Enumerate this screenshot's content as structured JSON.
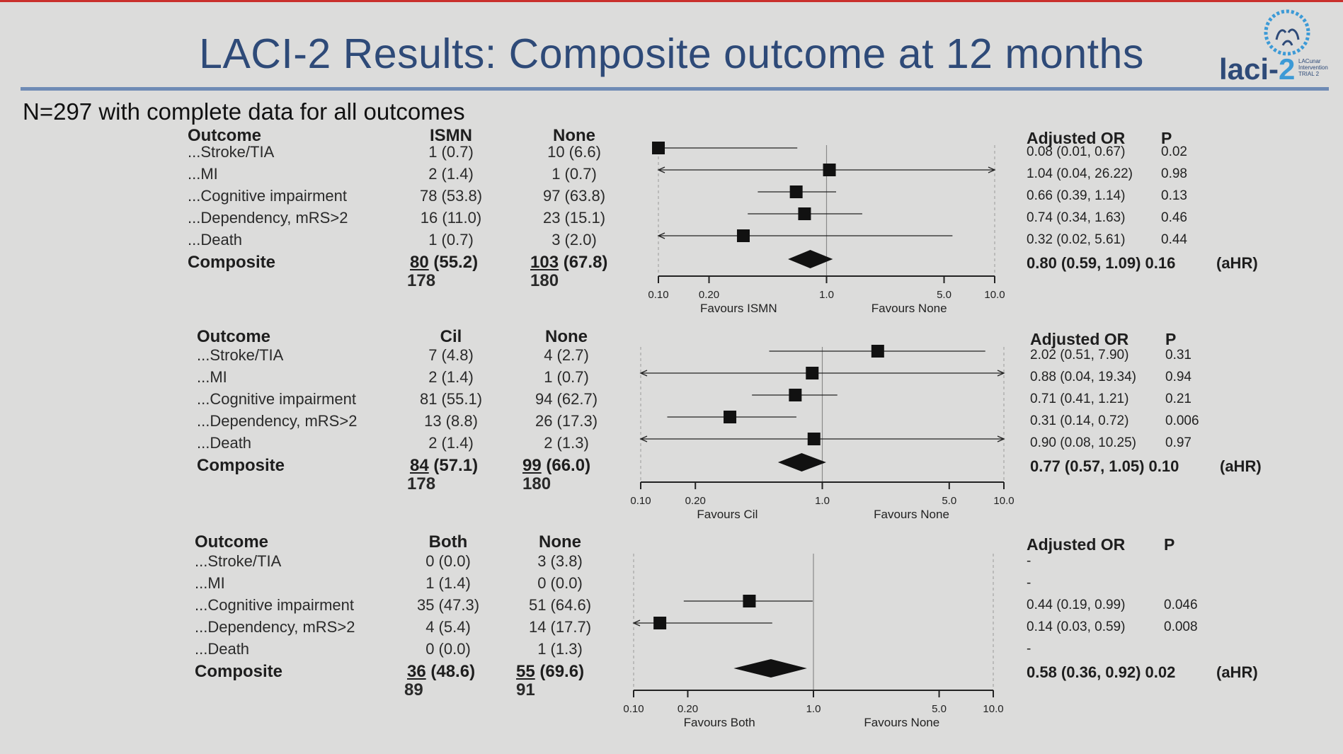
{
  "title": "LACI-2 Results: Composite outcome at 12 months",
  "subtitle": "N=297 with complete data for all outcomes",
  "logo": {
    "word": "laci-",
    "two": "2",
    "mini": "LACunar Intervention TRIAL 2"
  },
  "chart_data": [
    {
      "type": "forest",
      "outcome_header": "Outcome",
      "group_header": "ISMN",
      "control_header": "None",
      "or_header": "Adjusted  OR",
      "p_header": "P",
      "rows": [
        {
          "label": "...Stroke/TIA",
          "group": "1 (0.7)",
          "control": "10 (6.6)",
          "or_text": "0.08 (0.01, 0.67)",
          "p": "0.02",
          "est": 0.08,
          "lo": 0.01,
          "hi": 0.67
        },
        {
          "label": "...MI",
          "group": "2 (1.4)",
          "control": "1 (0.7)",
          "or_text": "1.04 (0.04, 26.22)",
          "p": "0.98",
          "est": 1.04,
          "lo": 0.04,
          "hi": 26.22
        },
        {
          "label": "...Cognitive impairment",
          "group": "78 (53.8)",
          "control": "97 (63.8)",
          "or_text": "0.66 (0.39, 1.14)",
          "p": "0.13",
          "est": 0.66,
          "lo": 0.39,
          "hi": 1.14
        },
        {
          "label": "...Dependency, mRS>2",
          "group": "16 (11.0)",
          "control": "23 (15.1)",
          "or_text": "0.74 (0.34, 1.63)",
          "p": "0.46",
          "est": 0.74,
          "lo": 0.34,
          "hi": 1.63
        },
        {
          "label": "...Death",
          "group": "1 (0.7)",
          "control": "3 (2.0)",
          "or_text": "0.32 (0.02, 5.61)",
          "p": "0.44",
          "est": 0.32,
          "lo": 0.02,
          "hi": 5.61
        }
      ],
      "composite": {
        "label": "Composite",
        "group_n": "80",
        "group_pct": " (55.2)",
        "control_n": "103",
        "control_pct": " (67.8)",
        "or_text": "0.80 (0.59, 1.09) 0.16",
        "tag": "(aHR)",
        "est": 0.8,
        "lo": 0.59,
        "hi": 1.09
      },
      "totals": {
        "group": "178",
        "control": "180"
      },
      "ticks": [
        "0.10",
        "0.20",
        "1.0",
        "5.0",
        "10.0"
      ],
      "left_label": "Favours ISMN",
      "right_label": "Favours None"
    },
    {
      "type": "forest",
      "outcome_header": "Outcome",
      "group_header": "Cil",
      "control_header": "None",
      "or_header": "Adjusted  OR",
      "p_header": "P",
      "rows": [
        {
          "label": "...Stroke/TIA",
          "group": "7 (4.8)",
          "control": "4 (2.7)",
          "or_text": "2.02 (0.51, 7.90)",
          "p": "0.31",
          "est": 2.02,
          "lo": 0.51,
          "hi": 7.9
        },
        {
          "label": "...MI",
          "group": "2 (1.4)",
          "control": "1 (0.7)",
          "or_text": "0.88 (0.04, 19.34)",
          "p": "0.94",
          "est": 0.88,
          "lo": 0.04,
          "hi": 19.34
        },
        {
          "label": "...Cognitive impairment",
          "group": "81 (55.1)",
          "control": "94 (62.7)",
          "or_text": "0.71 (0.41, 1.21)",
          "p": "0.21",
          "est": 0.71,
          "lo": 0.41,
          "hi": 1.21
        },
        {
          "label": "...Dependency, mRS>2",
          "group": "13 (8.8)",
          "control": "26 (17.3)",
          "or_text": "0.31 (0.14, 0.72)",
          "p": "0.006",
          "est": 0.31,
          "lo": 0.14,
          "hi": 0.72
        },
        {
          "label": "...Death",
          "group": "2 (1.4)",
          "control": "2 (1.3)",
          "or_text": "0.90 (0.08, 10.25)",
          "p": "0.97",
          "est": 0.9,
          "lo": 0.08,
          "hi": 10.25
        }
      ],
      "composite": {
        "label": "Composite",
        "group_n": "84",
        "group_pct": " (57.1)",
        "control_n": "99",
        "control_pct": " (66.0)",
        "or_text": "0.77 (0.57, 1.05) 0.10",
        "tag": "(aHR)",
        "est": 0.77,
        "lo": 0.57,
        "hi": 1.05
      },
      "totals": {
        "group": "178",
        "control": "180"
      },
      "ticks": [
        "0.10",
        "0.20",
        "1.0",
        "5.0",
        "10.0"
      ],
      "left_label": "Favours Cil",
      "right_label": "Favours None"
    },
    {
      "type": "forest",
      "outcome_header": "Outcome",
      "group_header": "Both",
      "control_header": "None",
      "or_header": "Adjusted OR",
      "p_header": "P",
      "rows": [
        {
          "label": "...Stroke/TIA",
          "group": "0 (0.0)",
          "control": "3 (3.8)",
          "or_text": "-",
          "p": "",
          "est": null,
          "lo": null,
          "hi": null
        },
        {
          "label": "...MI",
          "group": "1 (1.4)",
          "control": "0 (0.0)",
          "or_text": "-",
          "p": "",
          "est": null,
          "lo": null,
          "hi": null
        },
        {
          "label": "...Cognitive impairment",
          "group": "35 (47.3)",
          "control": "51 (64.6)",
          "or_text": "0.44 (0.19, 0.99)",
          "p": "0.046",
          "est": 0.44,
          "lo": 0.19,
          "hi": 0.99
        },
        {
          "label": "...Dependency, mRS>2",
          "group": "4 (5.4)",
          "control": "14 (17.7)",
          "or_text": "0.14 (0.03, 0.59)",
          "p": "0.008",
          "est": 0.14,
          "lo": 0.03,
          "hi": 0.59
        },
        {
          "label": "...Death",
          "group": "0 (0.0)",
          "control": "1 (1.3)",
          "or_text": "-",
          "p": "",
          "est": null,
          "lo": null,
          "hi": null
        }
      ],
      "composite": {
        "label": "Composite",
        "group_n": "36",
        "group_pct": " (48.6)",
        "control_n": "55",
        "control_pct": " (69.6)",
        "or_text": "0.58 (0.36, 0.92) 0.02",
        "tag": "(aHR)",
        "est": 0.58,
        "lo": 0.36,
        "hi": 0.92
      },
      "totals": {
        "group": "89",
        "control": "91"
      },
      "ticks": [
        "0.10",
        "0.20",
        "1.0",
        "5.0",
        "10.0"
      ],
      "left_label": "Favours Both",
      "right_label": "Favours None"
    }
  ]
}
